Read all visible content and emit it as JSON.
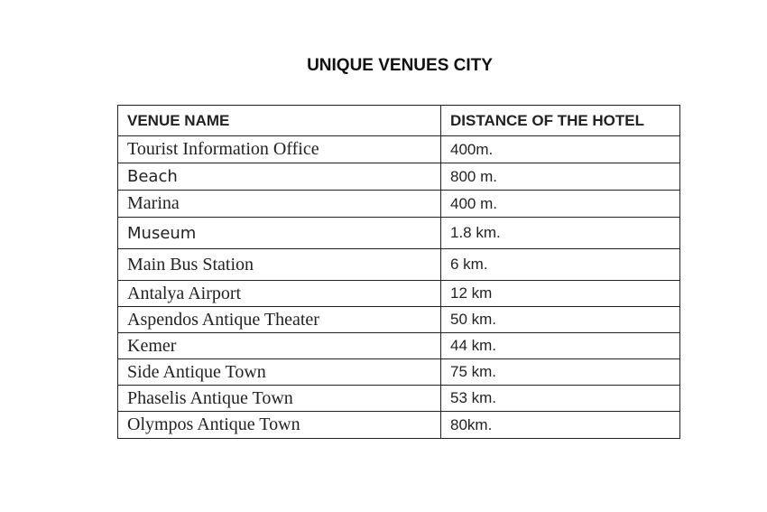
{
  "title": "UNIQUE VENUES CITY",
  "headers": [
    "VENUE NAME",
    "DISTANCE OF THE HOTEL"
  ],
  "rows": [
    {
      "venue": "Tourist Information Office",
      "distance": "400m.",
      "font": "serif"
    },
    {
      "venue": "Beach",
      "distance": "800 m.",
      "font": "sans"
    },
    {
      "venue": "Marina",
      "distance": "400 m.",
      "font": "serif"
    },
    {
      "venue": "Museum",
      "distance": "1.8 km.",
      "font": "sans"
    },
    {
      "venue": "Main Bus Station",
      "distance": "6 km.",
      "font": "serif"
    },
    {
      "venue": "Antalya Airport",
      "distance": "12 km",
      "font": "serif"
    },
    {
      "venue": "Aspendos Antique Theater",
      "distance": "50 km.",
      "font": "serif"
    },
    {
      "venue": "Kemer",
      "distance": "44 km.",
      "font": "serif"
    },
    {
      "venue": "Side Antique Town",
      "distance": "75 km.",
      "font": "serif"
    },
    {
      "venue": "Phaselis Antique Town",
      "distance": "53 km.",
      "font": "serif"
    },
    {
      "venue": "Olympos Antique Town",
      "distance": "80km.",
      "font": "serif"
    }
  ]
}
